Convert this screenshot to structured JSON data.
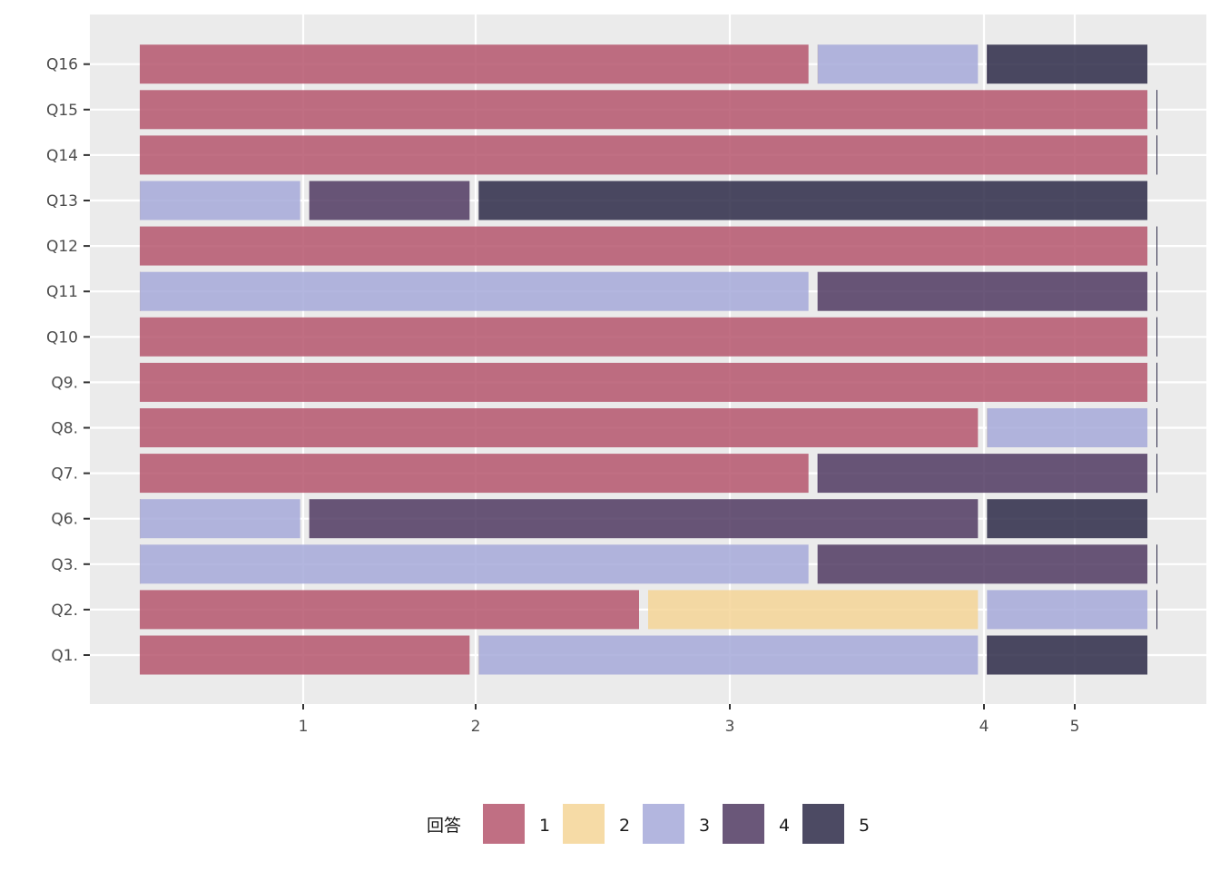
{
  "chart_data": {
    "type": "bar",
    "orientation": "horizontal",
    "stacked": true,
    "categories": [
      "Q1.",
      "Q2.",
      "Q3.",
      "Q6.",
      "Q7.",
      "Q8.",
      "Q9.",
      "Q10",
      "Q11",
      "Q12",
      "Q13",
      "Q14",
      "Q15",
      "Q16"
    ],
    "x_ticks": [
      "1",
      "2",
      "3",
      "4",
      "5"
    ],
    "grid": true,
    "legend": {
      "title": "回答",
      "position": "bottom",
      "keys": [
        "1",
        "2",
        "3",
        "4",
        "5"
      ]
    },
    "series": [
      {
        "name": "1",
        "color": "#B5566D",
        "values": [
          0.36,
          0.54,
          0.0,
          0.0,
          0.72,
          0.9,
          1.08,
          1.08,
          0.0,
          1.08,
          0.0,
          1.08,
          1.08,
          0.72
        ]
      },
      {
        "name": "2",
        "color": "#F4D596",
        "values": [
          0.0,
          0.36,
          0.0,
          0.0,
          0.0,
          0.0,
          0.0,
          0.0,
          0.0,
          0.0,
          0.0,
          0.0,
          0.0,
          0.0
        ]
      },
      {
        "name": "3",
        "color": "#A6A9D9",
        "values": [
          0.54,
          0.18,
          0.72,
          0.18,
          0.0,
          0.18,
          0.0,
          0.0,
          0.72,
          0.0,
          0.18,
          0.0,
          0.0,
          0.18
        ]
      },
      {
        "name": "4",
        "color": "#503A62",
        "values": [
          0.0,
          0.0,
          0.36,
          0.72,
          0.36,
          0.0,
          0.0,
          0.0,
          0.36,
          0.0,
          0.18,
          0.0,
          0.0,
          0.0
        ]
      },
      {
        "name": "5",
        "color": "#2D2A48",
        "values": [
          0.18,
          0.0,
          0.0,
          0.18,
          0.0,
          0.0,
          0.0,
          0.0,
          0.0,
          0.0,
          0.72,
          0.0,
          0.0,
          0.18
        ]
      }
    ]
  }
}
